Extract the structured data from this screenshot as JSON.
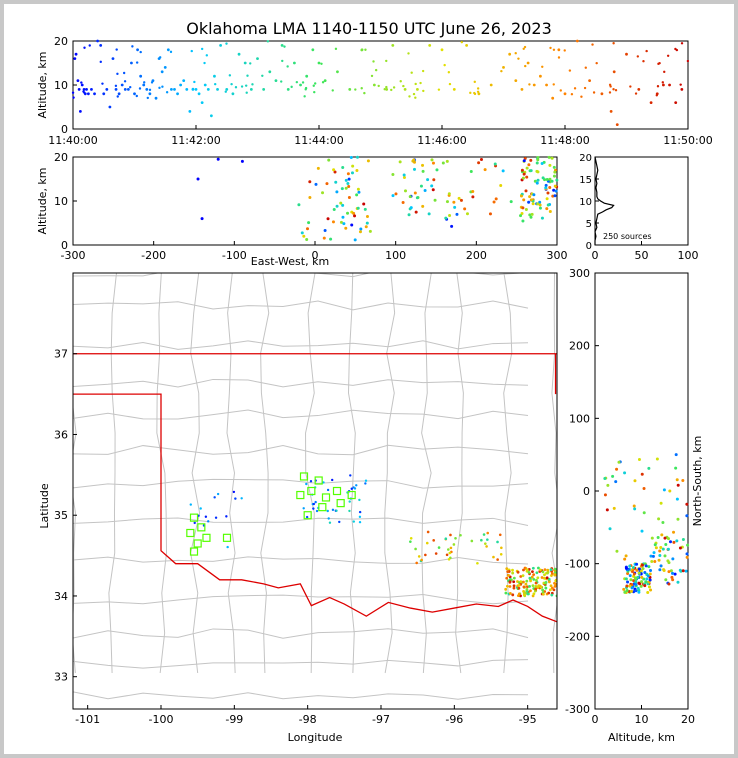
{
  "title": "Oklahoma LMA 1140-1150 UTC June 26, 2023",
  "colors": {
    "state_border": "#dd0000",
    "county_lines": "#c4c4c4",
    "frame": "#c8c8c8",
    "green_marker": "#55ff00"
  },
  "chart_data": [
    {
      "id": "time_height",
      "type": "scatter",
      "ylabel": "Altitude, km",
      "xlim_utc": [
        "11:40:00",
        "11:50:00"
      ],
      "xticks": [
        "11:40:00",
        "11:42:00",
        "11:44:00",
        "11:46:00",
        "11:48:00",
        "11:50:00"
      ],
      "ylim": [
        0,
        20
      ],
      "yticks": [
        "0",
        "10",
        "20"
      ],
      "color_by": "time",
      "points_time_min": [
        0.03,
        0.05,
        0.08,
        0.1,
        0.12,
        0.15,
        0.18,
        0.2,
        0.22,
        0.25,
        0.3,
        0.35,
        0.4,
        0.45,
        0.5,
        0.55,
        0.6,
        0.65,
        0.7,
        0.75,
        0.8,
        0.85,
        0.9,
        0.95,
        1.0,
        1.05,
        1.1,
        1.15,
        1.2,
        1.25,
        1.3,
        1.35,
        1.4,
        1.45,
        1.5,
        1.55,
        1.6,
        1.65,
        1.7,
        1.75,
        1.8,
        1.85,
        1.9,
        1.95,
        2.0,
        2.05,
        2.1,
        2.15,
        2.2,
        2.25,
        2.3,
        2.35,
        2.4,
        2.5,
        2.6,
        2.7,
        2.8,
        2.9,
        3.0,
        3.1,
        3.2,
        3.3,
        3.4,
        3.5,
        3.6,
        3.7,
        3.8,
        3.9,
        4.0,
        4.1,
        4.3,
        4.5,
        4.7,
        4.9,
        5.1,
        5.2,
        5.4,
        5.6,
        5.8,
        6.0,
        6.2,
        6.4,
        6.6,
        6.8,
        7.0,
        7.1,
        7.2,
        7.3,
        7.4,
        7.5,
        7.6,
        7.7,
        7.8,
        7.9,
        8.0,
        8.2,
        8.4,
        8.6,
        8.8,
        9.0,
        9.2,
        9.4,
        9.5,
        9.6,
        9.7,
        9.8,
        9.9
      ],
      "points_alt_km": [
        16,
        17,
        11,
        9,
        4,
        10,
        9,
        8,
        9,
        8,
        9,
        8,
        20,
        19,
        8,
        9,
        5,
        16,
        9,
        8,
        10,
        9,
        9,
        15,
        8,
        18,
        12,
        10,
        9,
        8,
        11,
        7,
        16,
        13,
        14,
        18,
        9,
        9,
        8,
        10,
        11,
        9,
        4,
        9,
        9,
        8,
        6,
        10,
        9,
        3,
        12,
        9,
        19,
        9,
        8,
        17,
        15,
        9,
        16,
        9,
        13,
        11,
        19,
        9,
        15,
        10,
        12,
        18,
        15,
        11,
        13,
        9,
        18,
        10,
        9,
        19,
        9,
        9,
        19,
        18,
        9,
        19,
        8,
        10,
        14,
        17,
        11,
        9,
        15,
        10,
        12,
        10,
        7,
        18,
        8,
        20,
        11,
        8,
        13,
        17,
        9,
        6,
        8,
        10,
        10,
        6,
        9
      ],
      "extra_points": [
        {
          "t": 8.85,
          "alt": 1
        },
        {
          "t": 8.75,
          "alt": 4
        }
      ]
    },
    {
      "id": "ew_altitude",
      "type": "scatter",
      "xlabel": "East-West, km",
      "ylabel": "Altitude, km",
      "xlim": [
        -300,
        300
      ],
      "xticks": [
        "-300",
        "-200",
        "-100",
        "0",
        "100",
        "200",
        "300"
      ],
      "ylim": [
        0,
        20
      ],
      "yticks": [
        "0",
        "10",
        "20"
      ]
    },
    {
      "id": "altitude_histogram",
      "type": "line",
      "label": "250 sources",
      "xlim": [
        0,
        100
      ],
      "xticks": [
        "0",
        "50",
        "100"
      ],
      "ylim": [
        0,
        20
      ],
      "yticks": [
        "0",
        "5",
        "10",
        "15",
        "20"
      ],
      "alt_bins_km": [
        0,
        1,
        2,
        3,
        4,
        5,
        6,
        7,
        7.5,
        8,
        8.5,
        9,
        9.5,
        10,
        10.5,
        11,
        12,
        13,
        14,
        15,
        16,
        17,
        18,
        19,
        20
      ],
      "counts": [
        0,
        0,
        1,
        0,
        2,
        1,
        2,
        3,
        8,
        12,
        18,
        20,
        10,
        6,
        3,
        2,
        2,
        1,
        2,
        1,
        2,
        3,
        2,
        1,
        0
      ]
    },
    {
      "id": "plan_view",
      "type": "scatter",
      "xlabel": "Longitude",
      "ylabel": "Latitude",
      "xlim": [
        -101.2,
        -94.6
      ],
      "xticks": [
        "-101",
        "-100",
        "-99",
        "-98",
        "-97",
        "-96",
        "-95"
      ],
      "ylim": [
        32.6,
        38.0
      ],
      "yticks": [
        "33",
        "34",
        "35",
        "36",
        "37"
      ],
      "green_squares": [
        [
          -99.55,
          34.97
        ],
        [
          -99.45,
          34.85
        ],
        [
          -99.38,
          34.72
        ],
        [
          -99.5,
          34.65
        ],
        [
          -99.6,
          34.78
        ],
        [
          -99.1,
          34.72
        ],
        [
          -98.05,
          35.48
        ],
        [
          -97.85,
          35.43
        ],
        [
          -97.95,
          35.3
        ],
        [
          -97.75,
          35.22
        ],
        [
          -97.55,
          35.15
        ],
        [
          -97.4,
          35.25
        ],
        [
          -97.6,
          35.3
        ],
        [
          -97.8,
          35.1
        ],
        [
          -98.0,
          35.0
        ],
        [
          -98.1,
          35.25
        ],
        [
          -99.55,
          34.55
        ]
      ]
    },
    {
      "id": "ns_altitude",
      "type": "scatter",
      "xlabel": "Altitude, km",
      "ylabel": "North-South, km",
      "xlim": [
        0,
        20
      ],
      "xticks": [
        "0",
        "10",
        "20"
      ],
      "ylim": [
        -300,
        300
      ],
      "yticks": [
        "-300",
        "-200",
        "-100",
        "0",
        "100",
        "200",
        "300"
      ]
    }
  ]
}
